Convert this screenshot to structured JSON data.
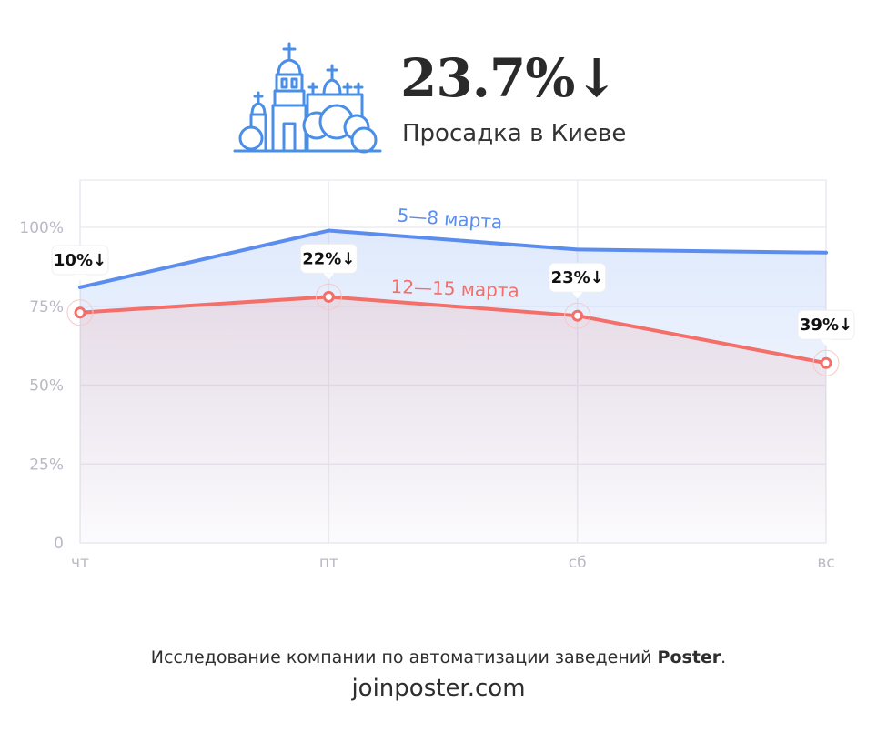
{
  "header": {
    "icon": "kyiv-cathedral-icon",
    "value": "23.7%",
    "arrow": "↓",
    "subtitle": "Просадка в Киеве"
  },
  "chart_data": {
    "type": "line",
    "categories": [
      "чт",
      "пт",
      "сб",
      "вс"
    ],
    "yticks": [
      "100%",
      "75%",
      "50%",
      "25%",
      "0"
    ],
    "ylim": [
      0,
      115
    ],
    "grid": true,
    "series": [
      {
        "name": "5—8 марта",
        "color": "#5b8def",
        "values": [
          81,
          99,
          93,
          92
        ]
      },
      {
        "name": "12—15 марта",
        "color": "#f46f6a",
        "values": [
          73,
          78,
          72,
          57
        ]
      }
    ],
    "annotations": [
      "10%↓",
      "22%↓",
      "23%↓",
      "39%↓"
    ]
  },
  "footer": {
    "note_prefix": "Исследование компании по автоматизации заведений ",
    "note_brand": "Poster",
    "note_suffix": ".",
    "site": "joinposter.com"
  }
}
